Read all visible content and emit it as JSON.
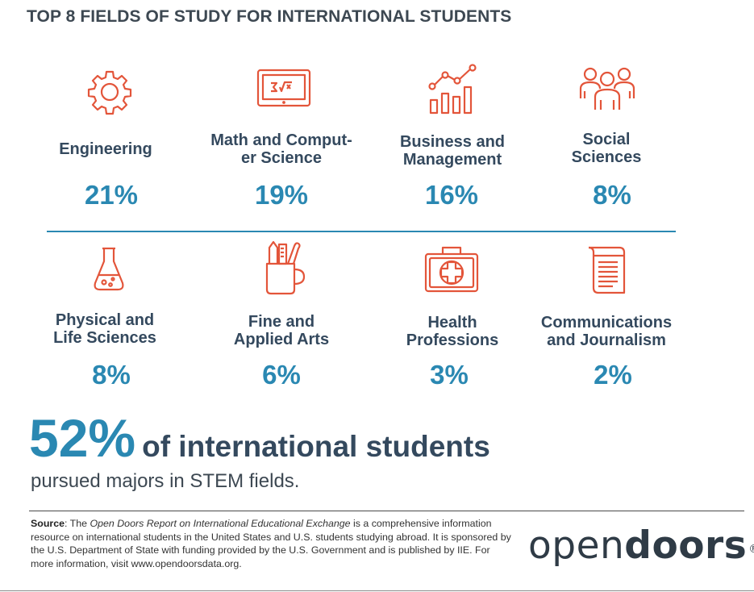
{
  "title": "TOP 8 FIELDS OF STUDY FOR INTERNATIONAL STUDENTS",
  "colors": {
    "accent": "#2a88b2",
    "icon": "#e3553a",
    "text": "#34495e"
  },
  "fields": [
    {
      "icon": "gear-icon",
      "line1": "Engineering",
      "line2": "",
      "percent": "21%"
    },
    {
      "icon": "math-screen-icon",
      "line1": "Math and Comput-",
      "line2": "er Science",
      "percent": "19%"
    },
    {
      "icon": "growth-chart-icon",
      "line1": "Business and",
      "line2": "Management",
      "percent": "16%"
    },
    {
      "icon": "people-group-icon",
      "line1": "Social",
      "line2": "Sciences",
      "percent": "8%"
    },
    {
      "icon": "flask-icon",
      "line1": "Physical and",
      "line2": "Life Sciences",
      "percent": "8%"
    },
    {
      "icon": "art-supplies-cup-icon",
      "line1": "Fine and",
      "line2": "Applied Arts",
      "percent": "6%"
    },
    {
      "icon": "first-aid-kit-icon",
      "line1": "Health",
      "line2": "Professions",
      "percent": "3%"
    },
    {
      "icon": "newspaper-scroll-icon",
      "line1": "Communications",
      "line2": "and Journalism",
      "percent": "2%"
    }
  ],
  "highlight": {
    "percent": "52%",
    "text": "of international students",
    "subtext": "pursued majors in STEM fields."
  },
  "source": {
    "label": "Source",
    "prefix": ": The ",
    "report": "Open Doors Report on International Educational Exchange",
    "body": " is a comprehensive information resource on international students in the United States and U.S. students studying abroad. It is sponsored by the U.S. Department of State with funding provided by the U.S. Government and is published by IIE. For more information, visit www.opendoorsdata.org."
  },
  "logo": {
    "light": "open",
    "bold": "doors",
    "mark": "®"
  }
}
